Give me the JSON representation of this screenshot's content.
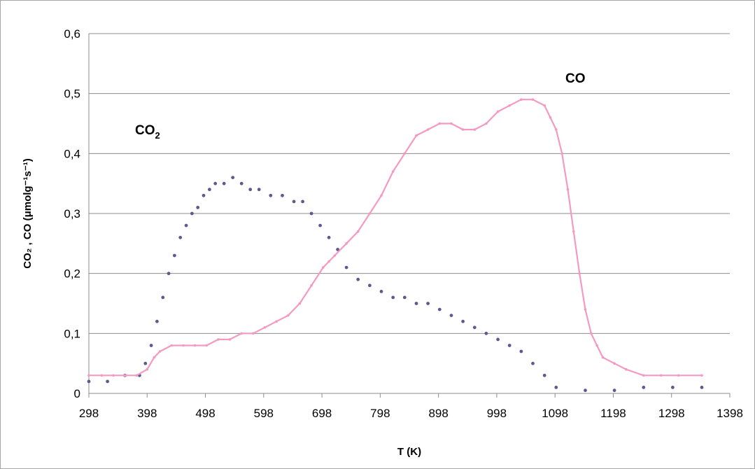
{
  "chart_data": {
    "type": "line",
    "xlabel": "T (K)",
    "ylabel": "CO₂ , CO (μmolg⁻¹s⁻¹)",
    "x_ticks": [
      "298",
      "398",
      "498",
      "598",
      "698",
      "798",
      "898",
      "998",
      "1098",
      "1198",
      "1298",
      "1398"
    ],
    "y_ticks": [
      "0",
      "0,1",
      "0,2",
      "0,3",
      "0,4",
      "0,5",
      "0,6"
    ],
    "xlim": [
      298,
      1398
    ],
    "ylim": [
      0,
      0.6
    ],
    "grid": "horizontal",
    "series": [
      {
        "name": "CO2",
        "label_main": "CO",
        "label_sub": "2",
        "marker": "dots",
        "color": "#5b5b8f",
        "x": [
          298,
          330,
          360,
          385,
          395,
          405,
          415,
          425,
          435,
          445,
          455,
          465,
          475,
          485,
          495,
          505,
          515,
          530,
          545,
          560,
          575,
          590,
          610,
          630,
          650,
          665,
          680,
          695,
          710,
          725,
          740,
          760,
          780,
          800,
          820,
          840,
          860,
          880,
          900,
          920,
          940,
          960,
          980,
          1000,
          1020,
          1040,
          1060,
          1080,
          1100,
          1150,
          1200,
          1250,
          1300,
          1350
        ],
        "y": [
          0.02,
          0.02,
          0.03,
          0.03,
          0.05,
          0.08,
          0.12,
          0.16,
          0.2,
          0.23,
          0.26,
          0.28,
          0.3,
          0.31,
          0.33,
          0.34,
          0.35,
          0.35,
          0.36,
          0.35,
          0.34,
          0.34,
          0.33,
          0.33,
          0.32,
          0.32,
          0.3,
          0.28,
          0.26,
          0.24,
          0.21,
          0.19,
          0.18,
          0.17,
          0.16,
          0.16,
          0.15,
          0.15,
          0.14,
          0.13,
          0.12,
          0.11,
          0.1,
          0.09,
          0.08,
          0.07,
          0.05,
          0.03,
          0.01,
          0.005,
          0.005,
          0.01,
          0.01,
          0.01
        ]
      },
      {
        "name": "CO",
        "label_main": "CO",
        "marker": "line",
        "color": "#f49ac2",
        "x": [
          298,
          320,
          340,
          360,
          380,
          398,
          410,
          420,
          440,
          460,
          480,
          500,
          520,
          540,
          560,
          580,
          600,
          620,
          640,
          660,
          680,
          700,
          710,
          720,
          740,
          760,
          780,
          800,
          820,
          840,
          860,
          880,
          900,
          920,
          940,
          960,
          980,
          1000,
          1020,
          1040,
          1060,
          1080,
          1090,
          1100,
          1110,
          1120,
          1130,
          1140,
          1150,
          1160,
          1170,
          1180,
          1200,
          1220,
          1250,
          1280,
          1310,
          1350
        ],
        "y": [
          0.03,
          0.03,
          0.03,
          0.03,
          0.03,
          0.04,
          0.06,
          0.07,
          0.08,
          0.08,
          0.08,
          0.08,
          0.09,
          0.09,
          0.1,
          0.1,
          0.11,
          0.12,
          0.13,
          0.15,
          0.18,
          0.21,
          0.22,
          0.23,
          0.25,
          0.27,
          0.3,
          0.33,
          0.37,
          0.4,
          0.43,
          0.44,
          0.45,
          0.45,
          0.44,
          0.44,
          0.45,
          0.47,
          0.48,
          0.49,
          0.49,
          0.48,
          0.46,
          0.44,
          0.4,
          0.34,
          0.27,
          0.2,
          0.14,
          0.1,
          0.08,
          0.06,
          0.05,
          0.04,
          0.03,
          0.03,
          0.03,
          0.03
        ]
      }
    ]
  }
}
